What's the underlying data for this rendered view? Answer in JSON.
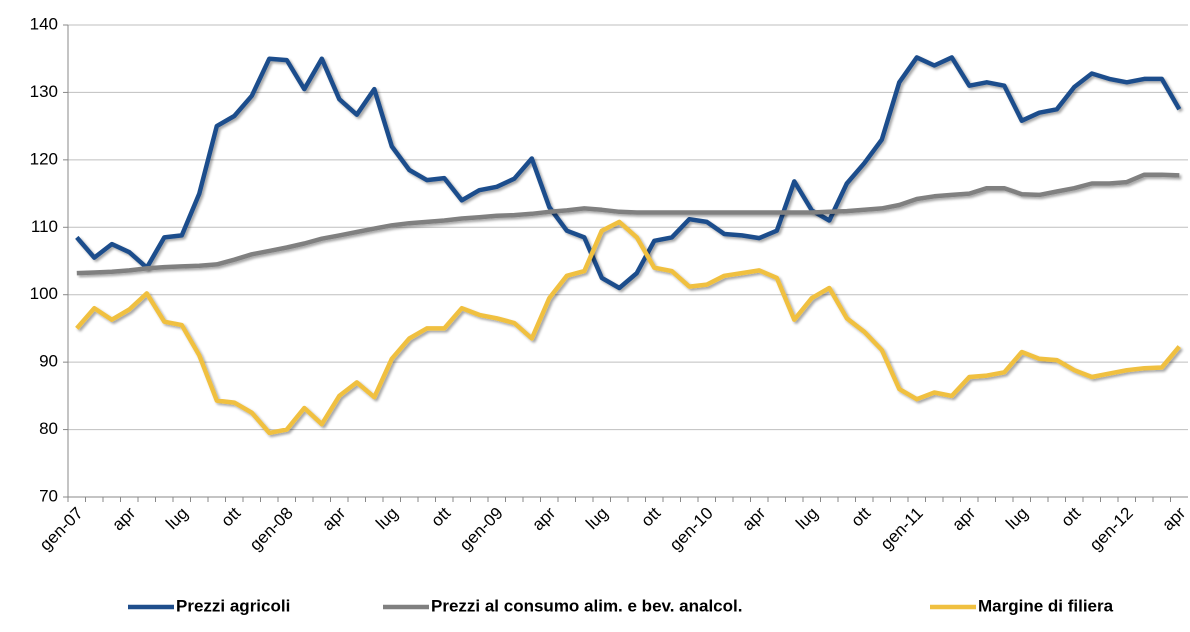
{
  "chart_data": {
    "type": "line",
    "categories": [
      "gen-07",
      null,
      null,
      "apr",
      null,
      null,
      "lug",
      null,
      null,
      "ott",
      null,
      null,
      "gen-08",
      null,
      null,
      "apr",
      null,
      null,
      "lug",
      null,
      null,
      "ott",
      null,
      null,
      "gen-09",
      null,
      null,
      "apr",
      null,
      null,
      "lug",
      null,
      null,
      "ott",
      null,
      null,
      "gen-10",
      null,
      null,
      "apr",
      null,
      null,
      "lug",
      null,
      null,
      "ott",
      null,
      null,
      "gen-11",
      null,
      null,
      "apr",
      null,
      null,
      "lug",
      null,
      null,
      "ott",
      null,
      null,
      "gen-12",
      null,
      null,
      "apr"
    ],
    "series": [
      {
        "name": "Prezzi agricoli",
        "color": "#1f4e8c",
        "values": [
          108.5,
          105.5,
          107.5,
          106.3,
          104,
          108.5,
          108.8,
          115,
          125,
          126.5,
          129.5,
          135,
          134.8,
          130.5,
          135,
          129,
          126.7,
          130.5,
          122,
          118.5,
          117,
          117.3,
          114,
          115.5,
          116,
          117.2,
          120.2,
          113,
          109.5,
          108.5,
          102.5,
          101,
          103.2,
          108,
          108.5,
          111.2,
          110.8,
          109,
          108.8,
          108.4,
          109.5,
          116.8,
          112.5,
          111,
          116.5,
          119.5,
          123,
          131.5,
          135.2,
          134,
          135.2,
          131,
          131.5,
          131,
          125.8,
          127,
          127.5,
          130.8,
          132.8,
          132,
          131.5,
          132,
          132,
          127.5
        ]
      },
      {
        "name": "Prezzi al consumo alim. e bev. analcol.",
        "color": "#808080",
        "values": [
          103.2,
          103.3,
          103.4,
          103.6,
          103.9,
          104.1,
          104.2,
          104.3,
          104.5,
          105.2,
          106,
          106.5,
          107,
          107.6,
          108.3,
          108.8,
          109.3,
          109.8,
          110.3,
          110.6,
          110.8,
          111,
          111.3,
          111.5,
          111.7,
          111.8,
          112,
          112.3,
          112.5,
          112.8,
          112.6,
          112.3,
          112.2,
          112.2,
          112.2,
          112.2,
          112.2,
          112.2,
          112.2,
          112.2,
          112.2,
          112.2,
          112.2,
          112.3,
          112.4,
          112.6,
          112.8,
          113.3,
          114.2,
          114.6,
          114.8,
          115,
          115.8,
          115.8,
          114.9,
          114.8,
          115.3,
          115.8,
          116.5,
          116.5,
          116.7,
          117.8,
          117.8,
          117.7
        ]
      },
      {
        "name": "Margine di filiera",
        "color": "#f0c040",
        "values": [
          95,
          98,
          96.3,
          97.8,
          100.2,
          96,
          95.5,
          91,
          84.3,
          84,
          82.5,
          79.5,
          80,
          83.2,
          80.8,
          85,
          87,
          84.8,
          90.5,
          93.5,
          95,
          95,
          98,
          97,
          96.5,
          95.8,
          93.5,
          99.5,
          102.8,
          103.5,
          109.5,
          110.8,
          108.5,
          104,
          103.5,
          101.2,
          101.5,
          102.8,
          103.2,
          103.6,
          102.5,
          96.3,
          99.5,
          101,
          96.5,
          94.5,
          91.8,
          86,
          84.5,
          85.5,
          85,
          87.8,
          88,
          88.5,
          91.5,
          90.5,
          90.3,
          88.8,
          87.8,
          88.3,
          88.8,
          89.1,
          89.2,
          92.3
        ]
      }
    ],
    "ylim": [
      70,
      140
    ],
    "yticks": [
      70,
      80,
      90,
      100,
      110,
      120,
      130,
      140
    ],
    "grid": true,
    "legend": "bottom"
  }
}
